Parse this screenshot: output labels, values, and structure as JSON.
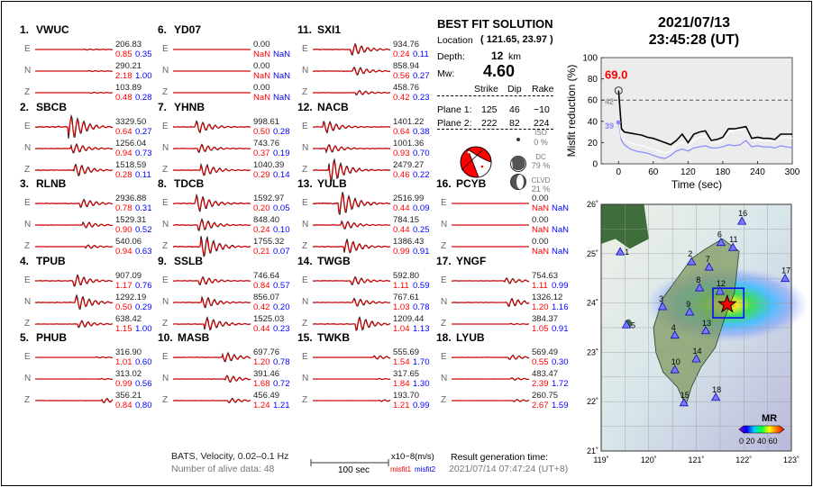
{
  "header": {
    "date": "2021/07/13",
    "time": "23:45:28  (UT)"
  },
  "solution": {
    "title": "BEST FIT SOLUTION",
    "location_label": "Location",
    "location_value": "( 121.65,  23.97 )",
    "depth_label": "Depth:",
    "depth_value": "12",
    "depth_unit": "km",
    "mw_label": "Mw:",
    "mw_value": "4.60",
    "columns": [
      "Strike",
      "Dip",
      "Rake"
    ],
    "planes": [
      {
        "label": "Plane 1:",
        "strike": "125",
        "dip": "46",
        "rake": "−10"
      },
      {
        "label": "Plane 2:",
        "strike": "222",
        "dip": "82",
        "rake": "224"
      }
    ],
    "components": [
      {
        "name": "ISO",
        "pct": "0 %"
      },
      {
        "name": "DC",
        "pct": "79 %"
      },
      {
        "name": "CLVD",
        "pct": "21 %"
      }
    ]
  },
  "stations": [
    {
      "num": "1.",
      "name": "VWUC",
      "comps": [
        {
          "c": "E",
          "amp": "206.83",
          "m1": "0.85",
          "m2": "0.35"
        },
        {
          "c": "N",
          "amp": "290.21",
          "m1": "2.18",
          "m2": "1.00"
        },
        {
          "c": "Z",
          "amp": "103.89",
          "m1": "0.48",
          "m2": "0.28"
        }
      ]
    },
    {
      "num": "2.",
      "name": "SBCB",
      "comps": [
        {
          "c": "E",
          "amp": "3329.50",
          "m1": "0.64",
          "m2": "0.27"
        },
        {
          "c": "N",
          "amp": "1256.04",
          "m1": "0.94",
          "m2": "0.73"
        },
        {
          "c": "Z",
          "amp": "1518.59",
          "m1": "0.28",
          "m2": "0.11"
        }
      ]
    },
    {
      "num": "3.",
      "name": "RLNB",
      "comps": [
        {
          "c": "E",
          "amp": "2936.88",
          "m1": "0.78",
          "m2": "0.31"
        },
        {
          "c": "N",
          "amp": "1529.31",
          "m1": "0.90",
          "m2": "0.52"
        },
        {
          "c": "Z",
          "amp": "540.06",
          "m1": "0.94",
          "m2": "0.63"
        }
      ]
    },
    {
      "num": "4.",
      "name": "TPUB",
      "comps": [
        {
          "c": "E",
          "amp": "907.09",
          "m1": "1.17",
          "m2": "0.76"
        },
        {
          "c": "N",
          "amp": "1292.19",
          "m1": "0.50",
          "m2": "0.29"
        },
        {
          "c": "Z",
          "amp": "638.42",
          "m1": "1.15",
          "m2": "1.00"
        }
      ]
    },
    {
      "num": "5.",
      "name": "PHUB",
      "comps": [
        {
          "c": "E",
          "amp": "316.90",
          "m1": "1.01",
          "m2": "0.60"
        },
        {
          "c": "N",
          "amp": "313.02",
          "m1": "0.99",
          "m2": "0.56"
        },
        {
          "c": "Z",
          "amp": "356.21",
          "m1": "0.84",
          "m2": "0.80"
        }
      ]
    },
    {
      "num": "6.",
      "name": "YD07",
      "comps": [
        {
          "c": "E",
          "amp": "0.00",
          "m1": "NaN",
          "m2": "NaN"
        },
        {
          "c": "N",
          "amp": "0.00",
          "m1": "NaN",
          "m2": "NaN"
        },
        {
          "c": "Z",
          "amp": "0.00",
          "m1": "NaN",
          "m2": "NaN"
        }
      ]
    },
    {
      "num": "7.",
      "name": "YHNB",
      "comps": [
        {
          "c": "E",
          "amp": "998.61",
          "m1": "0.50",
          "m2": "0.28"
        },
        {
          "c": "N",
          "amp": "743.76",
          "m1": "0.37",
          "m2": "0.19"
        },
        {
          "c": "Z",
          "amp": "1040.39",
          "m1": "0.29",
          "m2": "0.14"
        }
      ]
    },
    {
      "num": "8.",
      "name": "TDCB",
      "comps": [
        {
          "c": "E",
          "amp": "1592.97",
          "m1": "0.20",
          "m2": "0.05"
        },
        {
          "c": "N",
          "amp": "848.40",
          "m1": "0.24",
          "m2": "0.10"
        },
        {
          "c": "Z",
          "amp": "1755.32",
          "m1": "0.21",
          "m2": "0.07"
        }
      ]
    },
    {
      "num": "9.",
      "name": "SSLB",
      "comps": [
        {
          "c": "E",
          "amp": "746.64",
          "m1": "0.84",
          "m2": "0.57"
        },
        {
          "c": "N",
          "amp": "856.07",
          "m1": "0.42",
          "m2": "0.20"
        },
        {
          "c": "Z",
          "amp": "1525.03",
          "m1": "0.44",
          "m2": "0.23"
        }
      ]
    },
    {
      "num": "10.",
      "name": "MASB",
      "comps": [
        {
          "c": "E",
          "amp": "697.76",
          "m1": "1.20",
          "m2": "0.78"
        },
        {
          "c": "N",
          "amp": "391.46",
          "m1": "1.68",
          "m2": "0.72"
        },
        {
          "c": "Z",
          "amp": "456.49",
          "m1": "1.24",
          "m2": "1.21"
        }
      ]
    },
    {
      "num": "11.",
      "name": "SXI1",
      "comps": [
        {
          "c": "E",
          "amp": "934.76",
          "m1": "0.24",
          "m2": "0.11"
        },
        {
          "c": "N",
          "amp": "858.94",
          "m1": "0.56",
          "m2": "0.27"
        },
        {
          "c": "Z",
          "amp": "458.76",
          "m1": "0.42",
          "m2": "0.23"
        }
      ]
    },
    {
      "num": "12.",
      "name": "NACB",
      "comps": [
        {
          "c": "E",
          "amp": "1401.22",
          "m1": "0.64",
          "m2": "0.38"
        },
        {
          "c": "N",
          "amp": "1001.36",
          "m1": "0.93",
          "m2": "0.70"
        },
        {
          "c": "Z",
          "amp": "2479.27",
          "m1": "0.46",
          "m2": "0.22"
        }
      ]
    },
    {
      "num": "13.",
      "name": "YULB",
      "comps": [
        {
          "c": "E",
          "amp": "2516.99",
          "m1": "0.44",
          "m2": "0.09"
        },
        {
          "c": "N",
          "amp": "784.15",
          "m1": "0.44",
          "m2": "0.25"
        },
        {
          "c": "Z",
          "amp": "1386.43",
          "m1": "0.99",
          "m2": "0.91"
        }
      ]
    },
    {
      "num": "14.",
      "name": "TWGB",
      "comps": [
        {
          "c": "E",
          "amp": "592.80",
          "m1": "1.11",
          "m2": "0.59"
        },
        {
          "c": "N",
          "amp": "767.61",
          "m1": "1.03",
          "m2": "0.78"
        },
        {
          "c": "Z",
          "amp": "1209.44",
          "m1": "1.04",
          "m2": "1.13"
        }
      ]
    },
    {
      "num": "15.",
      "name": "TWKB",
      "comps": [
        {
          "c": "E",
          "amp": "555.69",
          "m1": "1.54",
          "m2": "1.70"
        },
        {
          "c": "N",
          "amp": "317.65",
          "m1": "1.84",
          "m2": "1.30"
        },
        {
          "c": "Z",
          "amp": "193.70",
          "m1": "1.21",
          "m2": "0.99"
        }
      ]
    },
    {
      "num": "16.",
      "name": "PCYB",
      "comps": [
        {
          "c": "E",
          "amp": "0.00",
          "m1": "NaN",
          "m2": "NaN"
        },
        {
          "c": "N",
          "amp": "0.00",
          "m1": "NaN",
          "m2": "NaN"
        },
        {
          "c": "Z",
          "amp": "0.00",
          "m1": "NaN",
          "m2": "NaN"
        }
      ]
    },
    {
      "num": "17.",
      "name": "YNGF",
      "comps": [
        {
          "c": "E",
          "amp": "754.63",
          "m1": "1.11",
          "m2": "0.99"
        },
        {
          "c": "N",
          "amp": "1326.12",
          "m1": "1.20",
          "m2": "1.16"
        },
        {
          "c": "Z",
          "amp": "384.37",
          "m1": "1.05",
          "m2": "0.91"
        }
      ]
    },
    {
      "num": "18.",
      "name": "LYUB",
      "comps": [
        {
          "c": "E",
          "amp": "569.49",
          "m1": "0.55",
          "m2": "0.30"
        },
        {
          "c": "N",
          "amp": "483.47",
          "m1": "2.39",
          "m2": "1.72"
        },
        {
          "c": "Z",
          "amp": "260.75",
          "m1": "2.67",
          "m2": "1.59"
        }
      ]
    }
  ],
  "footer": {
    "filter": "BATS, Velocity, 0.02–0.1 Hz",
    "alive": "Number of alive data: 48",
    "scale": "100 sec",
    "units": "x10−8(m/s)",
    "misfit1": "misfit1",
    "misfit2": "misfit2",
    "gen_label": "Result generation time:",
    "gen_time": "2021/07/14 07:47:24  (UT+8)"
  },
  "chart_data": {
    "type": "line",
    "xlabel": "Time (sec)",
    "ylabel": "Misfit reduction (%)",
    "xlim": [
      -30,
      300
    ],
    "ylim": [
      0,
      100
    ],
    "xticks": [
      "0",
      "60",
      "120",
      "180",
      "240",
      "300"
    ],
    "yticks": [
      "0",
      "20",
      "40",
      "60",
      "80",
      "100"
    ],
    "threshold": 60,
    "best_label": "69.0",
    "label_white": "42",
    "label_blue": "39",
    "x": [
      0,
      5,
      10,
      20,
      30,
      40,
      50,
      60,
      70,
      80,
      90,
      100,
      110,
      120,
      130,
      140,
      150,
      160,
      170,
      180,
      190,
      200,
      210,
      220,
      230,
      240,
      250,
      260,
      270,
      280,
      290,
      300
    ],
    "series": [
      {
        "name": "misfit reduction",
        "color": "#000000",
        "values": [
          69,
          33,
          30,
          29,
          28,
          27,
          25,
          24,
          22,
          20,
          18,
          22,
          28,
          20,
          28,
          30,
          31,
          22,
          23,
          25,
          33,
          33,
          34,
          35,
          24,
          25,
          24,
          24,
          23,
          28,
          28,
          28
        ]
      },
      {
        "name": "white",
        "color": "#ffffff",
        "values": [
          42,
          25,
          22,
          20,
          18,
          17,
          15,
          14,
          12,
          10,
          12,
          18,
          20,
          17,
          22,
          25,
          26,
          20,
          20,
          22,
          30,
          31,
          32,
          33,
          22,
          22,
          22,
          22,
          21,
          24,
          25,
          24
        ]
      },
      {
        "name": "blue",
        "color": "#8888ff",
        "values": [
          39,
          22,
          18,
          14,
          12,
          11,
          10,
          8,
          6,
          5,
          8,
          12,
          14,
          12,
          15,
          16,
          17,
          15,
          15,
          16,
          18,
          17,
          18,
          22,
          16,
          17,
          16,
          16,
          15,
          17,
          16,
          15
        ]
      }
    ]
  },
  "map": {
    "lon_ticks": [
      "119˚",
      "120˚",
      "121˚",
      "122˚",
      "123˚"
    ],
    "lat_ticks": [
      "21˚",
      "22˚",
      "23˚",
      "24˚",
      "25˚",
      "26˚"
    ],
    "legend_title": "MR",
    "legend_ticks": "0 20 40 60",
    "epicenter": [
      121.65,
      23.97
    ],
    "stations": [
      {
        "id": "1",
        "lon": 119.4,
        "lat": 25.03
      },
      {
        "id": "2",
        "lon": 120.9,
        "lat": 24.83
      },
      {
        "id": "3",
        "lon": 120.29,
        "lat": 23.92
      },
      {
        "id": "4",
        "lon": 120.55,
        "lat": 23.34
      },
      {
        "id": "5",
        "lon": 119.53,
        "lat": 23.55
      },
      {
        "id": "6",
        "lon": 121.52,
        "lat": 25.22
      },
      {
        "id": "7",
        "lon": 121.27,
        "lat": 24.72
      },
      {
        "id": "8",
        "lon": 121.07,
        "lat": 24.3
      },
      {
        "id": "9",
        "lon": 120.86,
        "lat": 23.81
      },
      {
        "id": "10",
        "lon": 120.55,
        "lat": 22.64
      },
      {
        "id": "11",
        "lon": 121.77,
        "lat": 25.12
      },
      {
        "id": "12",
        "lon": 121.5,
        "lat": 24.23
      },
      {
        "id": "13",
        "lon": 121.2,
        "lat": 23.43
      },
      {
        "id": "14",
        "lon": 121.0,
        "lat": 22.86
      },
      {
        "id": "15",
        "lon": 120.74,
        "lat": 21.97
      },
      {
        "id": "16",
        "lon": 121.96,
        "lat": 25.65
      },
      {
        "id": "17",
        "lon": 122.87,
        "lat": 24.49
      },
      {
        "id": "18",
        "lon": 121.41,
        "lat": 22.08
      }
    ]
  }
}
